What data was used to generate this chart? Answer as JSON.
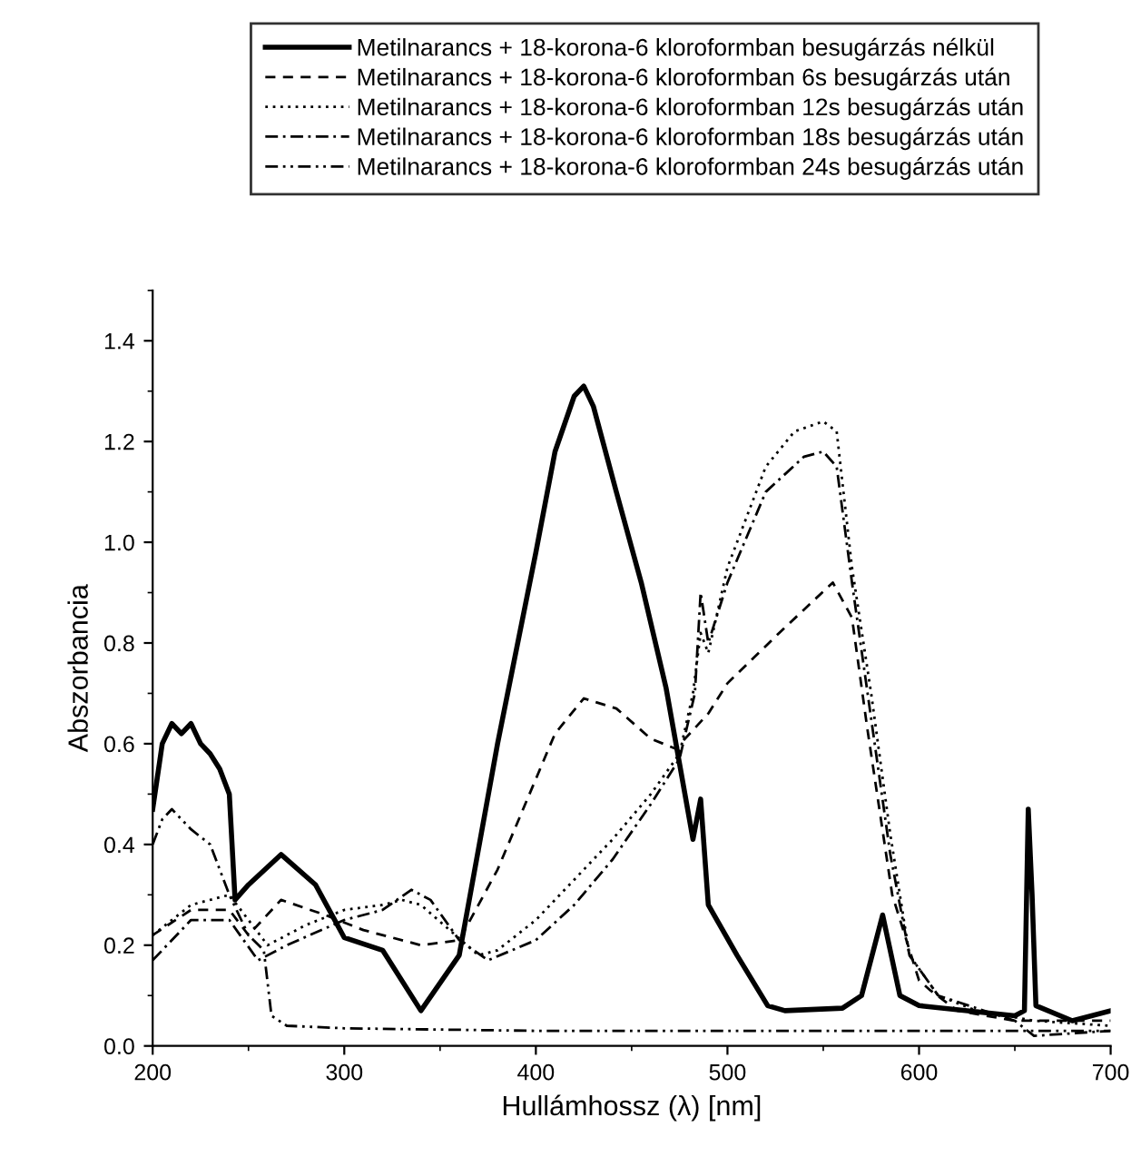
{
  "chart_data": {
    "type": "line",
    "xlabel": "Hullámhossz (λ) [nm]",
    "ylabel": "Abszorbancia",
    "xlim": [
      200,
      700
    ],
    "xticks": [
      200,
      300,
      400,
      500,
      600,
      700
    ],
    "ylim": [
      0,
      1.5
    ],
    "yticks": [
      {
        "value": 0,
        "label": "0.0"
      },
      0.2,
      0.4,
      0.6,
      0.8,
      {
        "value": 1,
        "label": "1.0"
      },
      1.2,
      1.4
    ],
    "grid": false,
    "legend": "top",
    "marker": "none",
    "series": [
      {
        "name": "Metilnarancs + 18-korona-6 kloroformban besugárzás nélkül",
        "color": "#000000",
        "line_style": "solid",
        "x": [
          200,
          205,
          210,
          215,
          220,
          225,
          230,
          235,
          240,
          243,
          250,
          267,
          285,
          300,
          320,
          340,
          360,
          380,
          400,
          410,
          420,
          425,
          430,
          442,
          455,
          468,
          482,
          486,
          490,
          505,
          521,
          530,
          560,
          570,
          581,
          590,
          600,
          650,
          655,
          657,
          659,
          661,
          680,
          700
        ],
        "values": [
          0.47,
          0.6,
          0.64,
          0.62,
          0.64,
          0.6,
          0.58,
          0.55,
          0.5,
          0.29,
          0.32,
          0.38,
          0.32,
          0.215,
          0.19,
          0.07,
          0.18,
          0.6,
          0.98,
          1.18,
          1.29,
          1.31,
          1.27,
          1.1,
          0.92,
          0.71,
          0.41,
          0.49,
          0.28,
          0.18,
          0.08,
          0.07,
          0.075,
          0.1,
          0.26,
          0.1,
          0.08,
          0.06,
          0.07,
          0.47,
          0.3,
          0.08,
          0.05,
          0.07
        ]
      },
      {
        "name": "Metilnarancs + 18-korona-6 kloroformban 6s besugárzás után",
        "color": "#000000",
        "line_style": "dashed",
        "x": [
          200,
          220,
          240,
          250,
          267,
          290,
          310,
          340,
          360,
          380,
          400,
          410,
          425,
          442,
          460,
          473,
          490,
          500,
          527,
          555,
          565,
          573,
          586,
          600,
          606,
          620,
          650,
          700
        ],
        "values": [
          0.22,
          0.27,
          0.27,
          0.22,
          0.29,
          0.26,
          0.23,
          0.2,
          0.21,
          0.35,
          0.53,
          0.62,
          0.69,
          0.67,
          0.61,
          0.59,
          0.66,
          0.72,
          0.82,
          0.92,
          0.85,
          0.63,
          0.3,
          0.13,
          0.11,
          0.07,
          0.05,
          0.05
        ]
      },
      {
        "name": "Metilnarancs + 18-korona-6 kloroformban 12s besugárzás után",
        "color": "#000000",
        "line_style": "dotted",
        "x": [
          200,
          220,
          240,
          260,
          280,
          300,
          320,
          330,
          340,
          355,
          370,
          380,
          400,
          420,
          440,
          460,
          475,
          482,
          486,
          490,
          500,
          520,
          535,
          550,
          557,
          565,
          575,
          585,
          595,
          610,
          630,
          660,
          700
        ],
        "values": [
          0.22,
          0.28,
          0.3,
          0.2,
          0.24,
          0.27,
          0.28,
          0.29,
          0.28,
          0.23,
          0.18,
          0.19,
          0.25,
          0.33,
          0.41,
          0.5,
          0.58,
          0.7,
          0.82,
          0.78,
          0.95,
          1.15,
          1.22,
          1.24,
          1.22,
          0.95,
          0.7,
          0.42,
          0.18,
          0.1,
          0.07,
          0.05,
          0.04
        ]
      },
      {
        "name": "Metilnarancs + 18-korona-6 kloroformban 18s besugárzás után",
        "color": "#000000",
        "line_style": "dashdot",
        "x": [
          200,
          220,
          240,
          255,
          270,
          300,
          320,
          335,
          345,
          360,
          375,
          400,
          420,
          440,
          460,
          475,
          483,
          486,
          490,
          500,
          520,
          540,
          550,
          557,
          565,
          575,
          585,
          595,
          610,
          650,
          660,
          700
        ],
        "values": [
          0.17,
          0.25,
          0.25,
          0.17,
          0.2,
          0.25,
          0.27,
          0.31,
          0.29,
          0.21,
          0.17,
          0.21,
          0.28,
          0.37,
          0.48,
          0.57,
          0.7,
          0.9,
          0.8,
          0.92,
          1.1,
          1.17,
          1.18,
          1.15,
          0.92,
          0.65,
          0.38,
          0.18,
          0.1,
          0.05,
          0.02,
          0.03
        ]
      },
      {
        "name": "Metilnarancs + 18-korona-6 kloroformban 24s besugárzás után",
        "color": "#000000",
        "line_style": "dashdotdot",
        "x": [
          200,
          205,
          210,
          220,
          230,
          240,
          250,
          258,
          262,
          270,
          300,
          400,
          500,
          600,
          700
        ],
        "values": [
          0.4,
          0.45,
          0.47,
          0.43,
          0.4,
          0.3,
          0.22,
          0.19,
          0.06,
          0.04,
          0.035,
          0.03,
          0.03,
          0.03,
          0.03
        ]
      }
    ]
  }
}
